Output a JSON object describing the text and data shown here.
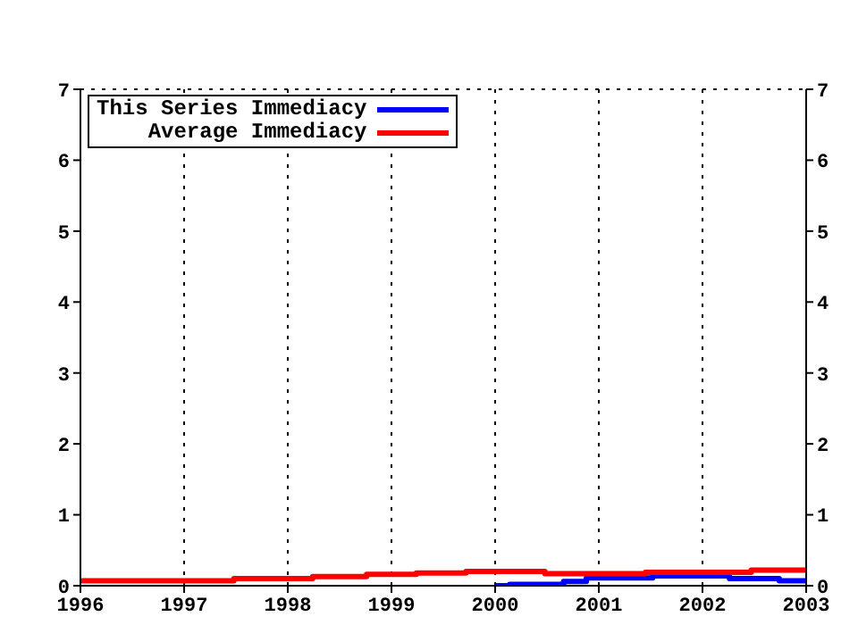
{
  "chart_data": {
    "type": "step",
    "xlim": [
      1996,
      2003
    ],
    "xticks": [
      1996,
      1997,
      1998,
      1999,
      2000,
      2001,
      2002,
      2003
    ],
    "ylim": [
      0,
      7
    ],
    "yticks": [
      0,
      1,
      2,
      3,
      4,
      5,
      6,
      7
    ],
    "y2lim": [
      0,
      7
    ],
    "y2ticks": [
      0,
      1,
      2,
      3,
      4,
      5,
      6,
      7
    ],
    "grid": true,
    "legend": "top left",
    "line_style": "solid",
    "marker": "none",
    "series": [
      {
        "name": "This Series Immediacy",
        "color": "#0000ff",
        "x": [
          2000,
          2000.14,
          2000.66,
          2000.88,
          2001.52,
          2002.26,
          2002.74,
          2003
        ],
        "values": [
          0,
          0.02,
          0.06,
          0.11,
          0.14,
          0.1,
          0.07,
          0.07
        ]
      },
      {
        "name": "Average Immediacy",
        "color": "#ff0000",
        "x": [
          1996,
          1997.48,
          1998.24,
          1998.76,
          1999.24,
          1999.72,
          2000.48,
          2001.45,
          2002.47,
          2003
        ],
        "values": [
          0.07,
          0.1,
          0.13,
          0.16,
          0.18,
          0.2,
          0.17,
          0.19,
          0.22,
          0.22
        ]
      }
    ]
  }
}
